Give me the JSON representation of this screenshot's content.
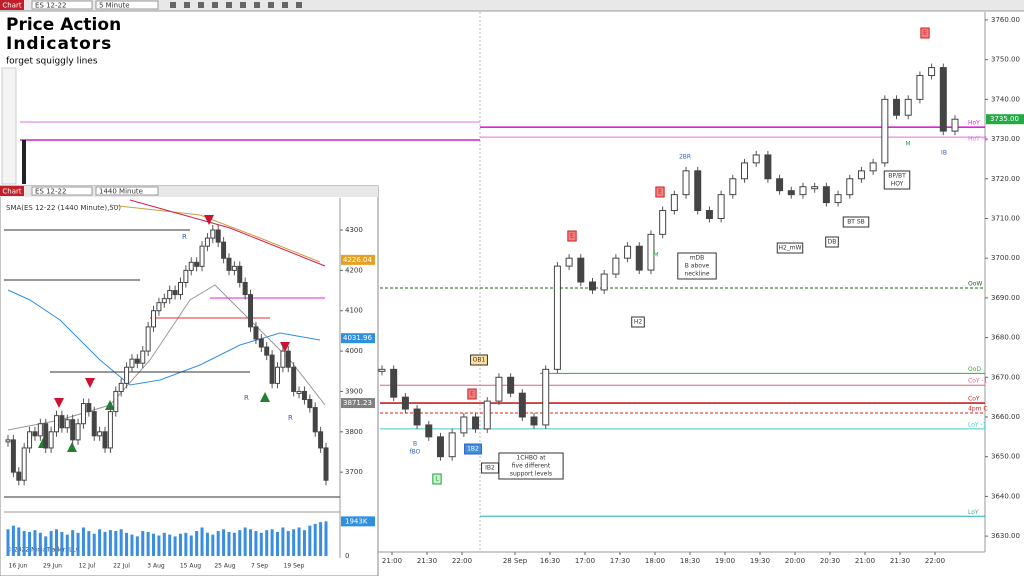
{
  "toolbar": {
    "button": "Chart",
    "instrument": "ES 12-22",
    "interval": "5 Minute"
  },
  "overlay": {
    "line1": "Price Action",
    "line2": "Indicators",
    "line3": "forget squiggly lines"
  },
  "main_chart": {
    "type": "candlestick",
    "ylim": [
      3626,
      3762
    ],
    "yticks": [
      {
        "value": 3630,
        "label": "3630.00"
      },
      {
        "value": 3640,
        "label": "3640.00"
      },
      {
        "value": 3650,
        "label": "3650.00"
      },
      {
        "value": 3660,
        "label": "3660.00"
      },
      {
        "value": 3670,
        "label": "3670.00"
      },
      {
        "value": 3680,
        "label": "3680.00"
      },
      {
        "value": 3690,
        "label": "3690.00"
      },
      {
        "value": 3700,
        "label": "3700.00"
      },
      {
        "value": 3710,
        "label": "3710.00"
      },
      {
        "value": 3720,
        "label": "3720.00"
      },
      {
        "value": 3730,
        "label": "3730.00"
      },
      {
        "value": 3740,
        "label": "3740.00"
      },
      {
        "value": 3750,
        "label": "3750.00"
      },
      {
        "value": 3760,
        "label": "3760.00"
      }
    ],
    "xticks": [
      "21:00",
      "21:30",
      "22:00",
      "28 Sep",
      "16:30",
      "17:00",
      "17:30",
      "18:00",
      "18:30",
      "19:00",
      "19:30",
      "20:00",
      "20:30",
      "21:00",
      "21:30",
      "22:00"
    ],
    "price_tag": {
      "value": 3735,
      "label": "3735.00"
    },
    "closes": [
      3672,
      3665,
      3662,
      3658,
      3655,
      3650,
      3656,
      3660,
      3657,
      3664,
      3670,
      3666,
      3660,
      3658,
      3672,
      3698,
      3700,
      3694,
      3692,
      3696,
      3700,
      3703,
      3697,
      3706,
      3712,
      3716,
      3722,
      3712,
      3710,
      3716,
      3720,
      3724,
      3726,
      3720,
      3717,
      3716,
      3718,
      3718,
      3714,
      3716,
      3720,
      3722,
      3724,
      3740,
      3736,
      3740,
      3746,
      3748,
      3732,
      3735
    ],
    "levels": [
      {
        "label": "HoY",
        "price": 3733,
        "color": "#e020e0"
      },
      {
        "label": "HoY -1",
        "price": 3730.5,
        "color": "#e070e0"
      },
      {
        "label": "OoW",
        "price": 3692.5,
        "color": "#206020"
      },
      {
        "label": "OoD",
        "price": 3671,
        "color": "#33aa33"
      },
      {
        "label": "CoY -1",
        "price": 3668,
        "color": "#e06080"
      },
      {
        "label": "CoY",
        "price": 3663.5,
        "color": "#cc2020"
      },
      {
        "label": "4pm C",
        "price": 3661,
        "color": "#dd2020"
      },
      {
        "label": "LoY -1",
        "price": 3657,
        "color": "#40c8d0"
      },
      {
        "label": "LoY",
        "price": 3635,
        "color": "#20b0b0"
      }
    ],
    "annotations": [
      {
        "lines": [
          "2BR"
        ]
      },
      {
        "lines": [
          "mDB",
          "B above",
          "neckline"
        ]
      },
      {
        "lines": [
          "H2"
        ]
      },
      {
        "lines": [
          "H2_mW"
        ]
      },
      {
        "lines": [
          "DB"
        ]
      },
      {
        "lines": [
          "BT SB"
        ]
      },
      {
        "lines": [
          "BP/BT",
          "HOY"
        ]
      },
      {
        "lines": [
          "1CHBO at",
          "five different",
          "support levels"
        ]
      },
      {
        "lines": [
          "IB2"
        ]
      },
      {
        "lines": [
          "1B2"
        ]
      },
      {
        "lines": [
          "OB1"
        ]
      },
      {
        "lines": [
          "fBO"
        ]
      },
      {
        "lines": [
          "B"
        ]
      },
      {
        "lines": [
          "IB"
        ]
      },
      {
        "lines": [
          "L"
        ]
      },
      {
        "lines": [
          "M"
        ]
      },
      {
        "lines": [
          "M"
        ]
      },
      {
        "lines": [
          "E"
        ]
      },
      {
        "lines": [
          "E"
        ]
      },
      {
        "lines": [
          "E"
        ]
      },
      {
        "lines": [
          "E"
        ]
      }
    ]
  },
  "inset": {
    "type": "candlestick",
    "button": "Chart",
    "instrument": "ES 12-22",
    "interval": "1440 Minute",
    "indicator": "SMA(ES 12-22 (1440 Minute),50)",
    "ylim": [
      3631,
      4362
    ],
    "yticks": [
      3700,
      3800,
      3900,
      4000,
      4100,
      4200,
      4300
    ],
    "xticks": [
      "16 Jun",
      "29 Jun",
      "12 Jul",
      "22 Jul",
      "3 Aug",
      "15 Aug",
      "25 Aug",
      "7 Sep",
      "19 Sep"
    ],
    "price_tags": [
      {
        "value": 4226.04,
        "label": "4226.04",
        "color": "#e8a020"
      },
      {
        "value": 4031.96,
        "label": "4031.96",
        "color": "#3090e0"
      },
      {
        "value": 3871.23,
        "label": "3871.23",
        "color": "#808080"
      }
    ],
    "closes": [
      3780,
      3700,
      3680,
      3760,
      3800,
      3790,
      3820,
      3760,
      3800,
      3840,
      3810,
      3830,
      3780,
      3820,
      3870,
      3850,
      3790,
      3800,
      3760,
      3850,
      3900,
      3920,
      3960,
      3980,
      3970,
      4000,
      4060,
      4100,
      4120,
      4130,
      4150,
      4140,
      4170,
      4200,
      4220,
      4210,
      4260,
      4280,
      4300,
      4270,
      4230,
      4200,
      4210,
      4170,
      4140,
      4060,
      4030,
      4010,
      3990,
      3920,
      3960,
      4000,
      3960,
      3900,
      3900,
      3880,
      3860,
      3800,
      3760,
      3680
    ],
    "marks": [
      "R",
      "R",
      "R"
    ],
    "volume_lim": [
      0,
      2300
    ],
    "volume_ticks": [
      {
        "value": 1943,
        "label": "1943K"
      },
      0
    ],
    "volume": [
      1500,
      1700,
      1600,
      1400,
      1350,
      1450,
      1300,
      1100,
      1400,
      1500,
      1350,
      1200,
      1450,
      1300,
      1600,
      1400,
      1250,
      1500,
      1350,
      1450,
      1400,
      1500,
      1300,
      1200,
      1100,
      1400,
      1350,
      1250,
      1150,
      1300,
      1200,
      1100,
      1250,
      1300,
      1150,
      1400,
      1600,
      1300,
      1200,
      1400,
      1500,
      1350,
      1300,
      1450,
      1600,
      1500,
      1400,
      1300,
      1450,
      1500,
      1350,
      1600,
      1400,
      1500,
      1600,
      1450,
      1700,
      1800,
      1900,
      1943
    ],
    "copyright": "© 2022 NinjaTrader, LLC"
  }
}
